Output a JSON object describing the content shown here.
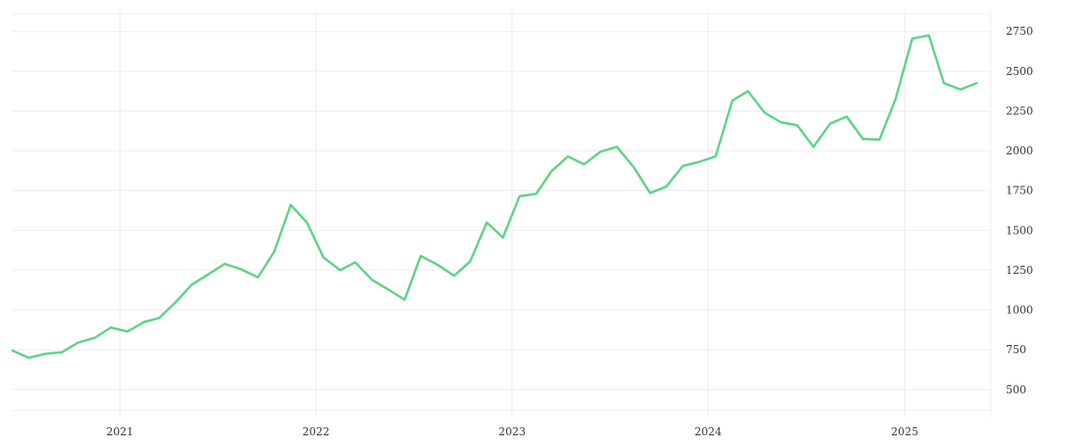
{
  "chart_data": {
    "type": "line",
    "title": "",
    "xlabel": "",
    "ylabel": "",
    "grid": true,
    "y_axis_side": "right",
    "line_color": "#5bd583",
    "x_ticks": [
      {
        "label": "2021",
        "date": "2021-01"
      },
      {
        "label": "2022",
        "date": "2022-01"
      },
      {
        "label": "2023",
        "date": "2023-01"
      },
      {
        "label": "2024",
        "date": "2024-01"
      },
      {
        "label": "2025",
        "date": "2025-01"
      }
    ],
    "y_ticks": [
      500,
      750,
      1000,
      1250,
      1500,
      1750,
      2000,
      2250,
      2500,
      2750
    ],
    "ylim": [
      370,
      2880
    ],
    "xlim": [
      "2020-06-15",
      "2025-06-10"
    ],
    "series": [
      {
        "x": [
          "2020-06",
          "2020-07",
          "2020-08",
          "2020-09",
          "2020-10",
          "2020-11",
          "2020-12",
          "2021-01",
          "2021-02",
          "2021-03",
          "2021-04",
          "2021-05",
          "2021-06",
          "2021-07",
          "2021-08",
          "2021-09",
          "2021-10",
          "2021-11",
          "2021-12",
          "2022-01",
          "2022-02",
          "2022-03",
          "2022-04",
          "2022-05",
          "2022-06",
          "2022-07",
          "2022-08",
          "2022-09",
          "2022-10",
          "2022-11",
          "2022-12",
          "2023-01",
          "2023-02",
          "2023-03",
          "2023-04",
          "2023-05",
          "2023-06",
          "2023-07",
          "2023-08",
          "2023-09",
          "2023-10",
          "2023-11",
          "2023-12",
          "2024-01",
          "2024-02",
          "2024-03",
          "2024-04",
          "2024-05",
          "2024-06",
          "2024-07",
          "2024-08",
          "2024-09",
          "2024-10",
          "2024-11",
          "2024-12",
          "2025-01",
          "2025-02",
          "2025-03",
          "2025-04",
          "2025-05"
        ],
        "values": [
          745,
          700,
          725,
          735,
          795,
          825,
          890,
          865,
          925,
          950,
          1050,
          1160,
          1225,
          1290,
          1255,
          1205,
          1365,
          1660,
          1550,
          1330,
          1250,
          1300,
          1190,
          1130,
          1065,
          1340,
          1285,
          1215,
          1305,
          1550,
          1455,
          1715,
          1730,
          1870,
          1965,
          1915,
          1995,
          2025,
          1900,
          1735,
          1775,
          1905,
          1930,
          1965,
          2315,
          2375,
          2240,
          2180,
          2160,
          2025,
          2170,
          2215,
          2075,
          2070,
          2325,
          2705,
          2725,
          2425,
          2385,
          2425
        ]
      }
    ]
  }
}
